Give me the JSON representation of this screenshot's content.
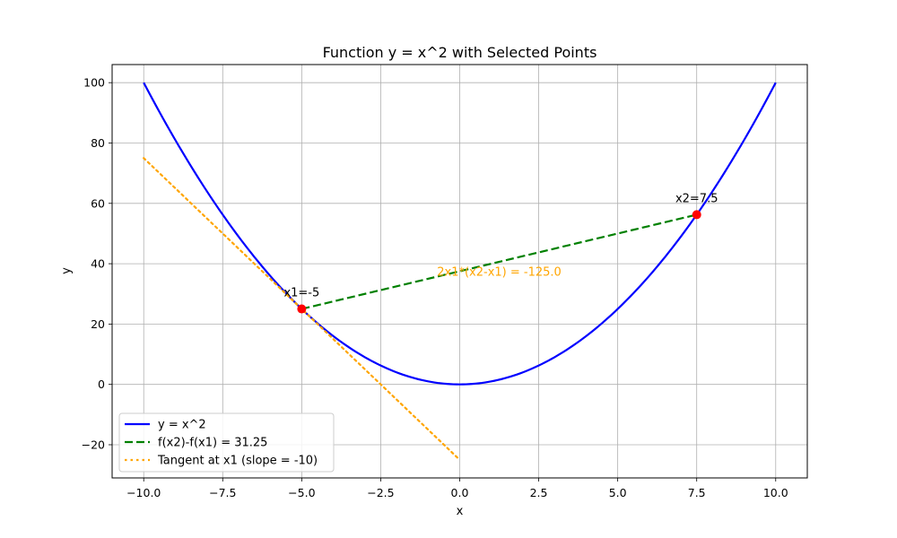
{
  "chart_data": {
    "type": "line",
    "title": "Function y = x^2 with Selected Points",
    "xlabel": "x",
    "ylabel": "y",
    "xlim": [
      -11,
      11
    ],
    "ylim": [
      -31,
      106
    ],
    "xticks": [
      -10.0,
      -7.5,
      -5.0,
      -2.5,
      0.0,
      2.5,
      5.0,
      7.5,
      10.0
    ],
    "xtick_labels": [
      "−10.0",
      "−7.5",
      "−5.0",
      "−2.5",
      "0.0",
      "2.5",
      "5.0",
      "7.5",
      "10.0"
    ],
    "yticks": [
      -20,
      0,
      20,
      40,
      60,
      80,
      100
    ],
    "ytick_labels": [
      "−20",
      "0",
      "20",
      "40",
      "60",
      "80",
      "100"
    ],
    "grid": true,
    "legend_position": "bottom-left",
    "series": [
      {
        "name": "y = x^2",
        "kind": "curve",
        "function": "x^2",
        "x_range": [
          -10,
          10
        ],
        "color": "#0000ff",
        "style": "solid"
      },
      {
        "name": "f(x2)-f(x1) = 31.25",
        "kind": "segment",
        "x": [
          -5,
          7.5
        ],
        "y": [
          25,
          56.25
        ],
        "color": "#008000",
        "style": "dashed"
      },
      {
        "name": "Tangent at x1 (slope = -10)",
        "kind": "segment",
        "x": [
          -10,
          0
        ],
        "y": [
          75,
          -25
        ],
        "color": "#ffa500",
        "style": "dotted"
      }
    ],
    "points": [
      {
        "name": "x1",
        "x": -5,
        "y": 25,
        "color": "#ff0000",
        "label": "x1=-5"
      },
      {
        "name": "x2",
        "x": 7.5,
        "y": 56.25,
        "color": "#ff0000",
        "label": "x2=7.5"
      }
    ],
    "annotations": [
      {
        "text": "2x1*(x2-x1) = -125.0",
        "x": 1.25,
        "y": 37.5,
        "color": "#ffa500"
      }
    ]
  }
}
